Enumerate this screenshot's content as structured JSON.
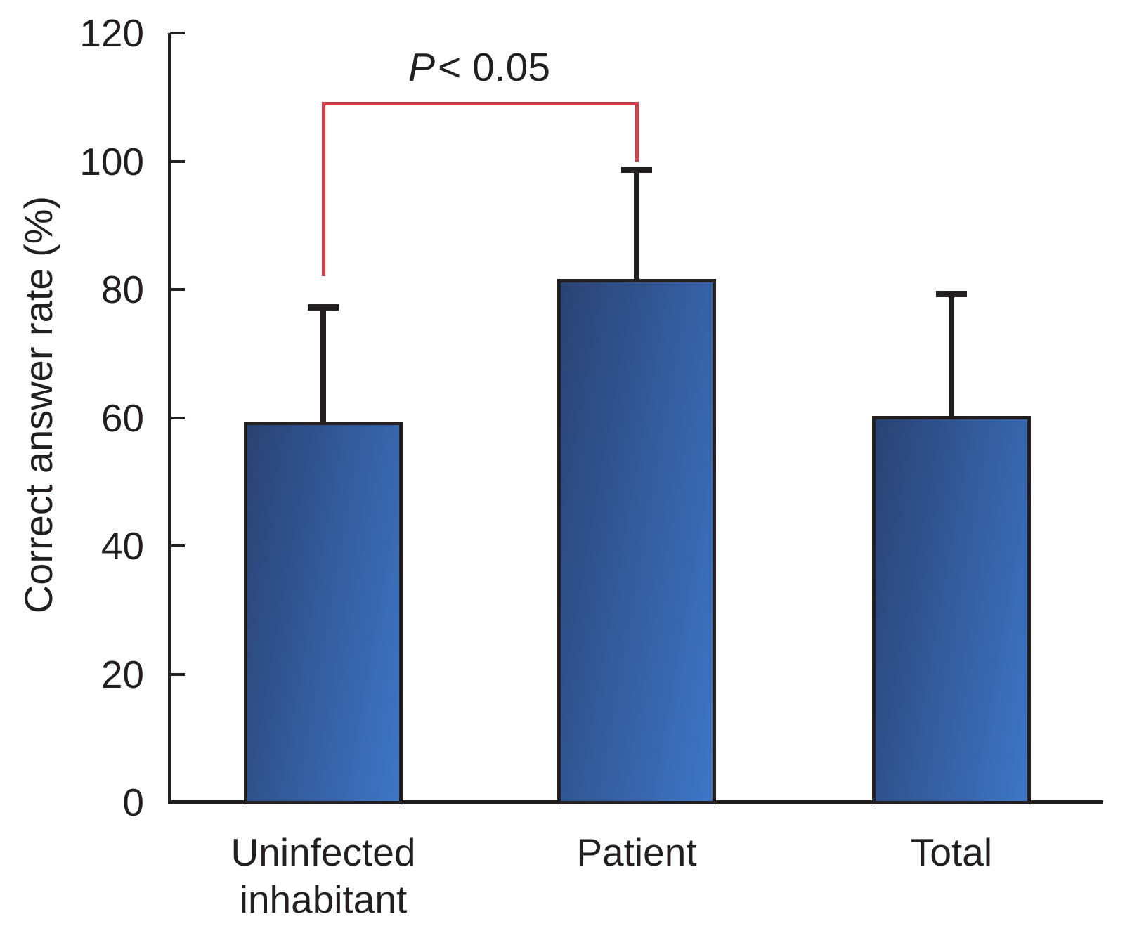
{
  "figure": {
    "background": "#ffffff"
  },
  "chart_data": {
    "type": "bar",
    "title": "",
    "xlabel": "",
    "ylabel": "Correct answer rate (%)",
    "categories": [
      "Uninfected inhabitant",
      "Patient",
      "Total"
    ],
    "category_lines": [
      [
        "Uninfected",
        "inhabitant"
      ],
      [
        "Patient"
      ],
      [
        "Total"
      ]
    ],
    "values": [
      59.4,
      81.6,
      60.3
    ],
    "errors_upper": [
      17.8,
      17.1,
      19.0
    ],
    "ylim": [
      0,
      120
    ],
    "yticks": [
      0,
      20,
      40,
      60,
      80,
      100,
      120
    ],
    "grid": false,
    "legend": false,
    "bar_fill_gradient": [
      "#2a4273",
      "#3e76c6"
    ],
    "bar_border_color": "#231f20",
    "error_color": "#231f20",
    "axis_color": "#231f20",
    "significance": {
      "pair": [
        0,
        1
      ],
      "label": "P < 0.05",
      "color": "#c9404a",
      "bracket_top_value": 109.3,
      "left_drop_to_value": 82.1,
      "right_drop_to_value": 99.9
    }
  }
}
